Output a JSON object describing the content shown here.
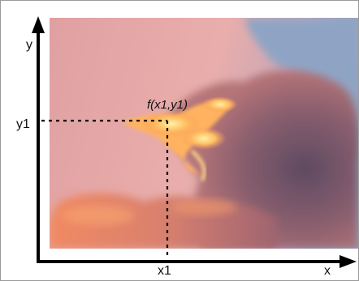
{
  "figure": {
    "axis_x_label": "x",
    "axis_y_label": "y",
    "tick_x1": "x1",
    "tick_y1": "y1",
    "point_label": "f(x1,y1)"
  },
  "colors": {
    "axis": "#000000",
    "sky": "#8fa4c4",
    "haze": "#e4a7a7",
    "cloud_glow": "#ffb25e",
    "cloud_shadow": "#7a5a6c"
  }
}
